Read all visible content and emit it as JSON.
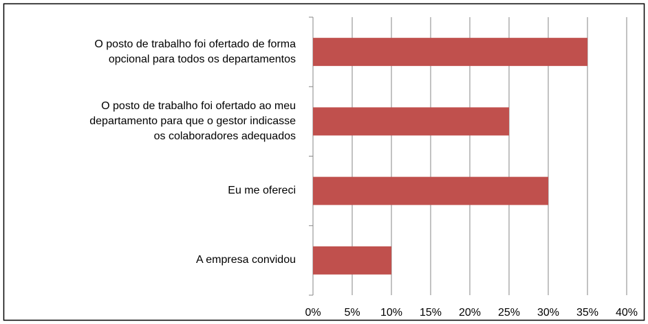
{
  "chart_data": {
    "type": "bar",
    "orientation": "horizontal",
    "categories": [
      "O posto de trabalho foi ofertado de forma\nopcional para todos os departamentos",
      "O posto de trabalho foi ofertado ao meu\ndepartamento para que o gestor indicasse\nos colaboradores adequados",
      "Eu me ofereci",
      "A empresa convidou"
    ],
    "values": [
      35,
      25,
      30,
      10
    ],
    "color": "#c0504d",
    "xlim": [
      0,
      40
    ],
    "xticks": [
      {
        "value": 0,
        "label": "0%"
      },
      {
        "value": 5,
        "label": "5%"
      },
      {
        "value": 10,
        "label": "10%"
      },
      {
        "value": 15,
        "label": "15%"
      },
      {
        "value": 20,
        "label": "20%"
      },
      {
        "value": 25,
        "label": "25%"
      },
      {
        "value": 30,
        "label": "30%"
      },
      {
        "value": 35,
        "label": "35%"
      },
      {
        "value": 40,
        "label": "40%"
      }
    ],
    "grid": true
  }
}
